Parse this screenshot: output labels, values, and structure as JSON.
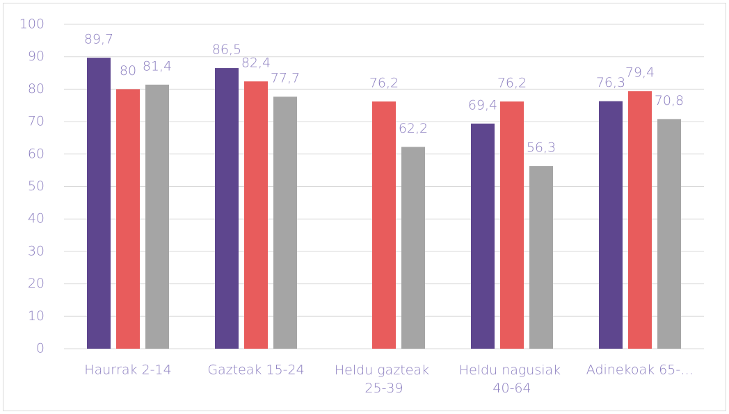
{
  "chart_data": {
    "type": "bar",
    "categories": [
      "Haurrak 2-14",
      "Gazteak 15-24",
      "Heldu gazteak 25-39",
      "Heldu nagusiak 40-64",
      "Adinekoak 65-…"
    ],
    "series": [
      {
        "color": "#5e468e",
        "values": [
          89.7,
          86.5,
          null,
          69.4,
          76.3
        ],
        "value_labels": [
          "89,7",
          "86,5",
          null,
          "69,4",
          "76,3"
        ]
      },
      {
        "color": "#e85c5c",
        "values": [
          80,
          82.4,
          76.2,
          76.2,
          79.4
        ],
        "value_labels": [
          "80",
          "82,4",
          "76,2",
          "76,2",
          "79,4"
        ]
      },
      {
        "color": "#a5a5a5",
        "values": [
          81.4,
          77.7,
          62.2,
          56.3,
          70.8
        ],
        "value_labels": [
          "81,4",
          "77,7",
          "62,2",
          "56,3",
          "70,8"
        ]
      }
    ],
    "ylim": [
      0,
      100
    ],
    "yticks": [
      0,
      10,
      20,
      30,
      40,
      50,
      60,
      70,
      80,
      90,
      100
    ],
    "grid": true
  }
}
